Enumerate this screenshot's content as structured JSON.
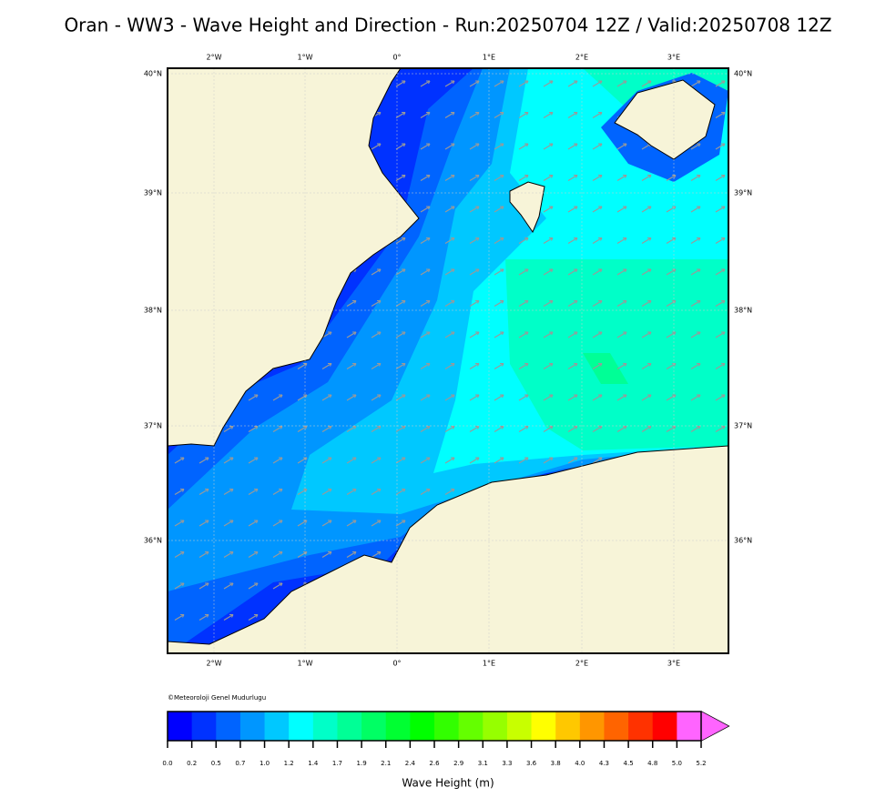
{
  "header": {
    "title": "Oran - WW3 - Wave Height and Direction - Run:20250704 12Z / Valid:20250708 12Z"
  },
  "map": {
    "lon_labels": [
      "2°W",
      "1°W",
      "0°",
      "1°E",
      "2°E",
      "3°E"
    ],
    "lat_labels": [
      "40°N",
      "39°N",
      "38°N",
      "37°N",
      "36°N"
    ]
  },
  "credit": "©Meteoroloji Genel Mudurlugu",
  "colorbar": {
    "label": "Wave Height (m)",
    "ticks": [
      "0.0",
      "0.2",
      "0.5",
      "0.7",
      "1.0",
      "1.2",
      "1.4",
      "1.7",
      "1.9",
      "2.1",
      "2.4",
      "2.6",
      "2.9",
      "3.1",
      "3.3",
      "3.6",
      "3.8",
      "4.0",
      "4.3",
      "4.5",
      "4.8",
      "5.0",
      "5.2"
    ],
    "colors": [
      "#0000ff",
      "#0032ff",
      "#0064ff",
      "#0096ff",
      "#00c8ff",
      "#00ffff",
      "#00ffc8",
      "#00ff96",
      "#00ff64",
      "#00ff32",
      "#00ff00",
      "#32ff00",
      "#64ff00",
      "#96ff00",
      "#c8ff00",
      "#ffff00",
      "#ffc800",
      "#ff9600",
      "#ff6400",
      "#ff3200",
      "#ff0000",
      "#ff64ff"
    ]
  }
}
